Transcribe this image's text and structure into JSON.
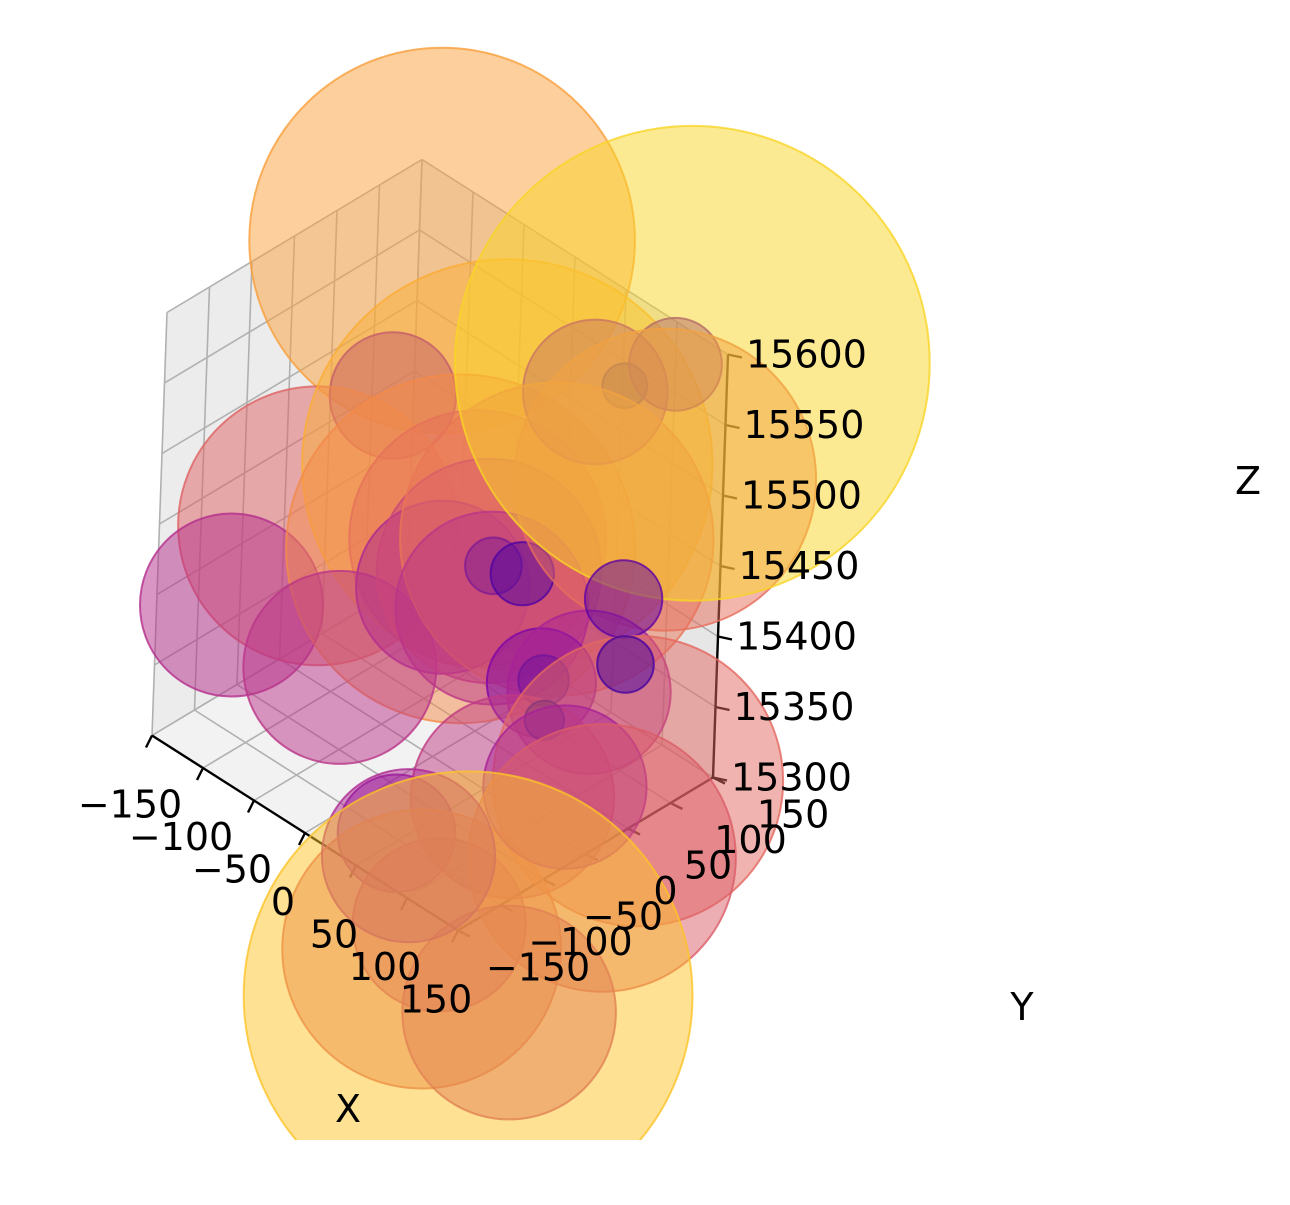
{
  "chart_data": {
    "type": "scatter",
    "projection": "3d",
    "title": "",
    "xlabel": "X",
    "ylabel": "Y",
    "zlabel": "Z",
    "xlim": [
      -150,
      150
    ],
    "ylim": [
      -150,
      150
    ],
    "zlim": [
      15300,
      15600
    ],
    "x_ticks": [
      "−150",
      "−100",
      "−50",
      "0",
      "50",
      "100",
      "150"
    ],
    "y_ticks": [
      "−150",
      "−100",
      "−50",
      "0",
      "50",
      "100",
      "150"
    ],
    "z_ticks": [
      "15300",
      "15350",
      "15400",
      "15450",
      "15500",
      "15550",
      "15600"
    ],
    "grid": true,
    "colormap": "plasma",
    "alpha": 0.5,
    "note_marker_size": "marker size and color both vary with a per-point value",
    "points": [
      {
        "x": -120,
        "y": 140,
        "z": 15560,
        "v": 0.78
      },
      {
        "x": 140,
        "y": 120,
        "z": 15600,
        "v": 0.92
      },
      {
        "x": -10,
        "y": 90,
        "z": 15470,
        "v": 0.82
      },
      {
        "x": -150,
        "y": 40,
        "z": 15380,
        "v": 0.6
      },
      {
        "x": -20,
        "y": 50,
        "z": 15420,
        "v": 0.72
      },
      {
        "x": 40,
        "y": 90,
        "z": 15440,
        "v": 0.66
      },
      {
        "x": 150,
        "y": 60,
        "z": 15330,
        "v": 0.62
      },
      {
        "x": 150,
        "y": 20,
        "z": 15290,
        "v": 0.58
      },
      {
        "x": 60,
        "y": -80,
        "z": 15220,
        "v": 0.6
      },
      {
        "x": 130,
        "y": -110,
        "z": 15230,
        "v": 0.88
      },
      {
        "x": 110,
        "y": 130,
        "z": 15500,
        "v": 0.64
      },
      {
        "x": -150,
        "y": -60,
        "z": 15360,
        "v": 0.42
      },
      {
        "x": 120,
        "y": 10,
        "z": 15330,
        "v": 0.38
      },
      {
        "x": -60,
        "y": -40,
        "z": 15350,
        "v": 0.44
      },
      {
        "x": 100,
        "y": -150,
        "z": 15330,
        "v": 0.4
      },
      {
        "x": 130,
        "y": -60,
        "z": 15200,
        "v": 0.48
      },
      {
        "x": -130,
        "y": 100,
        "z": 15460,
        "v": 0.3
      },
      {
        "x": 40,
        "y": 50,
        "z": 15430,
        "v": 0.14
      },
      {
        "x": 20,
        "y": 40,
        "z": 15430,
        "v": 0.12
      },
      {
        "x": 100,
        "y": 60,
        "z": 15370,
        "v": 0.38
      },
      {
        "x": 70,
        "y": 40,
        "z": 15370,
        "v": 0.26
      },
      {
        "x": 130,
        "y": 60,
        "z": 15450,
        "v": 0.18
      },
      {
        "x": 150,
        "y": 40,
        "z": 15420,
        "v": 0.12
      },
      {
        "x": 80,
        "y": 30,
        "z": 15380,
        "v": 0.1
      },
      {
        "x": 90,
        "y": 20,
        "z": 15360,
        "v": 0.06
      },
      {
        "x": 0,
        "y": -40,
        "z": 15260,
        "v": 0.28
      },
      {
        "x": 40,
        "y": 130,
        "z": 15530,
        "v": 0.34
      },
      {
        "x": 60,
        "y": 140,
        "z": 15540,
        "v": 0.08
      },
      {
        "x": 100,
        "y": 150,
        "z": 15570,
        "v": 0.22
      },
      {
        "x": 70,
        "y": 10,
        "z": 15300,
        "v": 0.46
      },
      {
        "x": 60,
        "y": -60,
        "z": 15230,
        "v": 0.4
      },
      {
        "x": 0,
        "y": 60,
        "z": 15410,
        "v": 0.5
      },
      {
        "x": -20,
        "y": 70,
        "z": 15420,
        "v": 0.56
      },
      {
        "x": 20,
        "y": 40,
        "z": 15400,
        "v": 0.44
      },
      {
        "x": -20,
        "y": 30,
        "z": 15400,
        "v": 0.4
      }
    ]
  }
}
